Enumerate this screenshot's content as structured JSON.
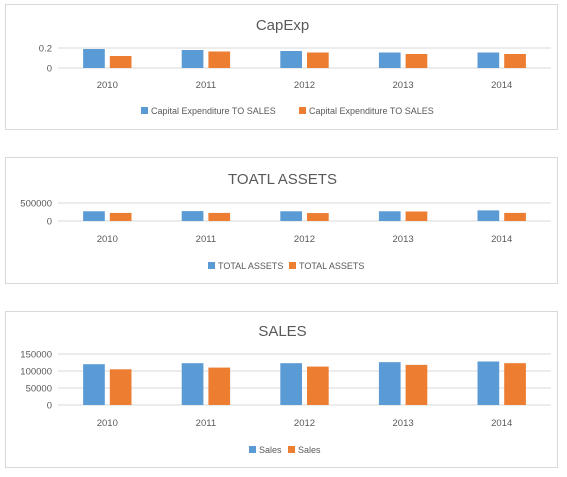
{
  "colors": {
    "series1": "#5b9bd5",
    "series2": "#ed7d31",
    "grid": "#d9d9d9",
    "text": "#595959"
  },
  "chart_data": [
    {
      "type": "bar",
      "title": "CapExp",
      "categories": [
        "2010",
        "2011",
        "2012",
        "2013",
        "2014"
      ],
      "yticks": [
        "0.2",
        "0"
      ],
      "ylim": [
        0,
        0.2
      ],
      "grid": true,
      "legend_position": "bottom",
      "series": [
        {
          "name": "Capital Expenditure TO SALES",
          "values": [
            0.19,
            0.18,
            0.17,
            0.155,
            0.155
          ]
        },
        {
          "name": "Capital Expenditure TO SALES",
          "values": [
            0.12,
            0.165,
            0.155,
            0.14,
            0.14
          ]
        }
      ]
    },
    {
      "type": "bar",
      "title": "TOATL ASSETS",
      "categories": [
        "2010",
        "2011",
        "2012",
        "2013",
        "2014"
      ],
      "yticks": [
        "500000",
        "0"
      ],
      "ylim": [
        0,
        500000
      ],
      "grid": true,
      "legend_position": "bottom",
      "series": [
        {
          "name": "TOTAL ASSETS",
          "values": [
            270000,
            275000,
            270000,
            270000,
            295000
          ]
        },
        {
          "name": "TOTAL ASSETS",
          "values": [
            225000,
            225000,
            220000,
            265000,
            225000
          ]
        }
      ]
    },
    {
      "type": "bar",
      "title": "SALES",
      "categories": [
        "2010",
        "2011",
        "2012",
        "2013",
        "2014"
      ],
      "yticks": [
        "150000",
        "100000",
        "50000",
        "0"
      ],
      "ylim": [
        0,
        150000
      ],
      "grid": true,
      "legend_position": "bottom",
      "series": [
        {
          "name": "Sales",
          "values": [
            120000,
            123000,
            123000,
            126000,
            128000
          ]
        },
        {
          "name": "Sales",
          "values": [
            105000,
            110000,
            113000,
            118000,
            123000
          ]
        }
      ]
    }
  ]
}
